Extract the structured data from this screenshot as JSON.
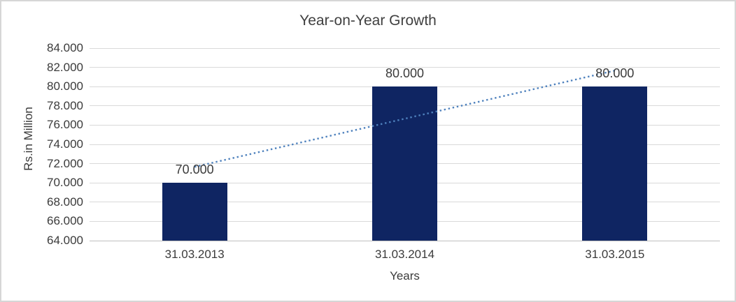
{
  "chart_data": {
    "type": "bar",
    "title": "Year-on-Year Growth",
    "xlabel": "Years",
    "ylabel": "Rs.in Million",
    "categories": [
      "31.03.2013",
      "31.03.2014",
      "31.03.2015"
    ],
    "values": [
      70000,
      80000,
      80000
    ],
    "value_labels": [
      "70.000",
      "80.000",
      "80.000"
    ],
    "ylim": [
      64000,
      84000
    ],
    "ytick_step": 2000,
    "ytick_labels": [
      "64.000",
      "66.000",
      "68.000",
      "70.000",
      "72.000",
      "74.000",
      "76.000",
      "78.000",
      "80.000",
      "82.000",
      "84.000"
    ],
    "grid": true,
    "legend": "none",
    "trendline": {
      "type": "linear",
      "style": "dotted",
      "color": "#4e81bd"
    },
    "colors": {
      "bar": "#0f2562",
      "trendline": "#4e81bd",
      "gridline": "#d9d9d9",
      "axis_line": "#bfbfbf",
      "text": "#3b3b3b",
      "title_text": "#404040",
      "frame_border": "#d6d6d6",
      "background": "#ffffff"
    }
  }
}
